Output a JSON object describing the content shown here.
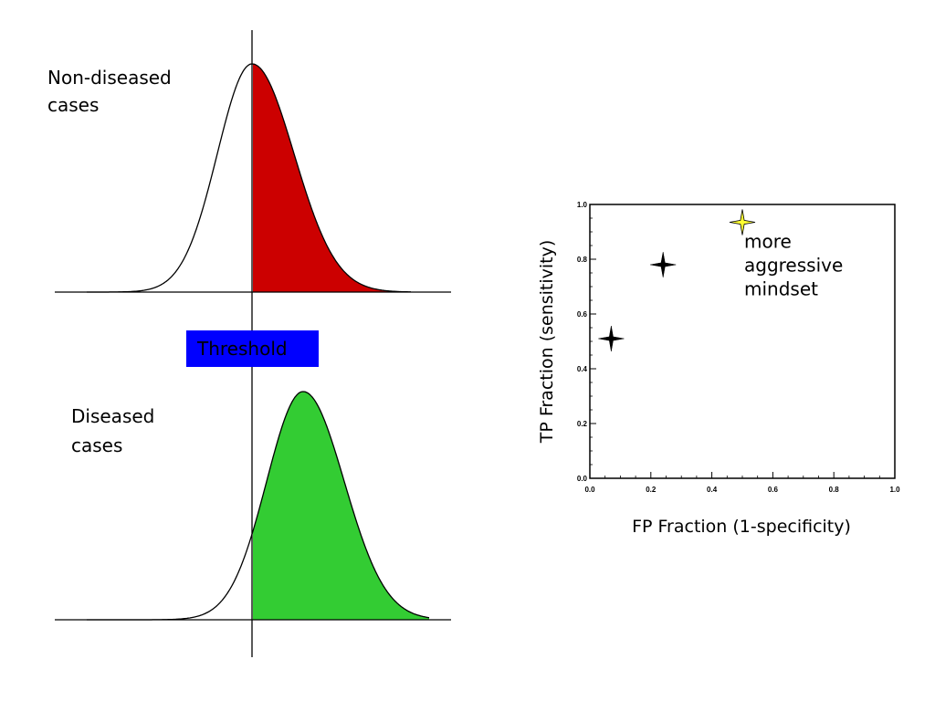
{
  "diagram": {
    "labels": {
      "nondiseased_line1": "Non-diseased",
      "nondiseased_line2": "cases",
      "diseased_line1": "Diseased",
      "diseased_line2": "cases",
      "threshold": "Threshold"
    },
    "colors": {
      "nondiseased_fill": "#cc0000",
      "diseased_fill": "#33cc33",
      "threshold_bg": "#0000ff",
      "threshold_text": "#ffffff",
      "highlight_star": "#ffff33"
    }
  },
  "chart_data": {
    "type": "scatter",
    "xlabel": "FP Fraction (1-specificity)",
    "ylabel": "TP Fraction (sensitivity)",
    "xlim": [
      0.0,
      1.0
    ],
    "ylim": [
      0.0,
      1.0
    ],
    "x_ticks": [
      "0.0",
      "0.2",
      "0.4",
      "0.6",
      "0.8",
      "1.0"
    ],
    "y_ticks": [
      "0.0",
      "0.2",
      "0.4",
      "0.6",
      "0.8",
      "1.0"
    ],
    "points": [
      {
        "x": 0.07,
        "y": 0.51,
        "color": "#000000"
      },
      {
        "x": 0.24,
        "y": 0.78,
        "color": "#000000"
      },
      {
        "x": 0.5,
        "y": 0.935,
        "color": "#ffff33"
      }
    ],
    "annotation_lines": [
      "more",
      "aggressive",
      "mindset"
    ]
  }
}
